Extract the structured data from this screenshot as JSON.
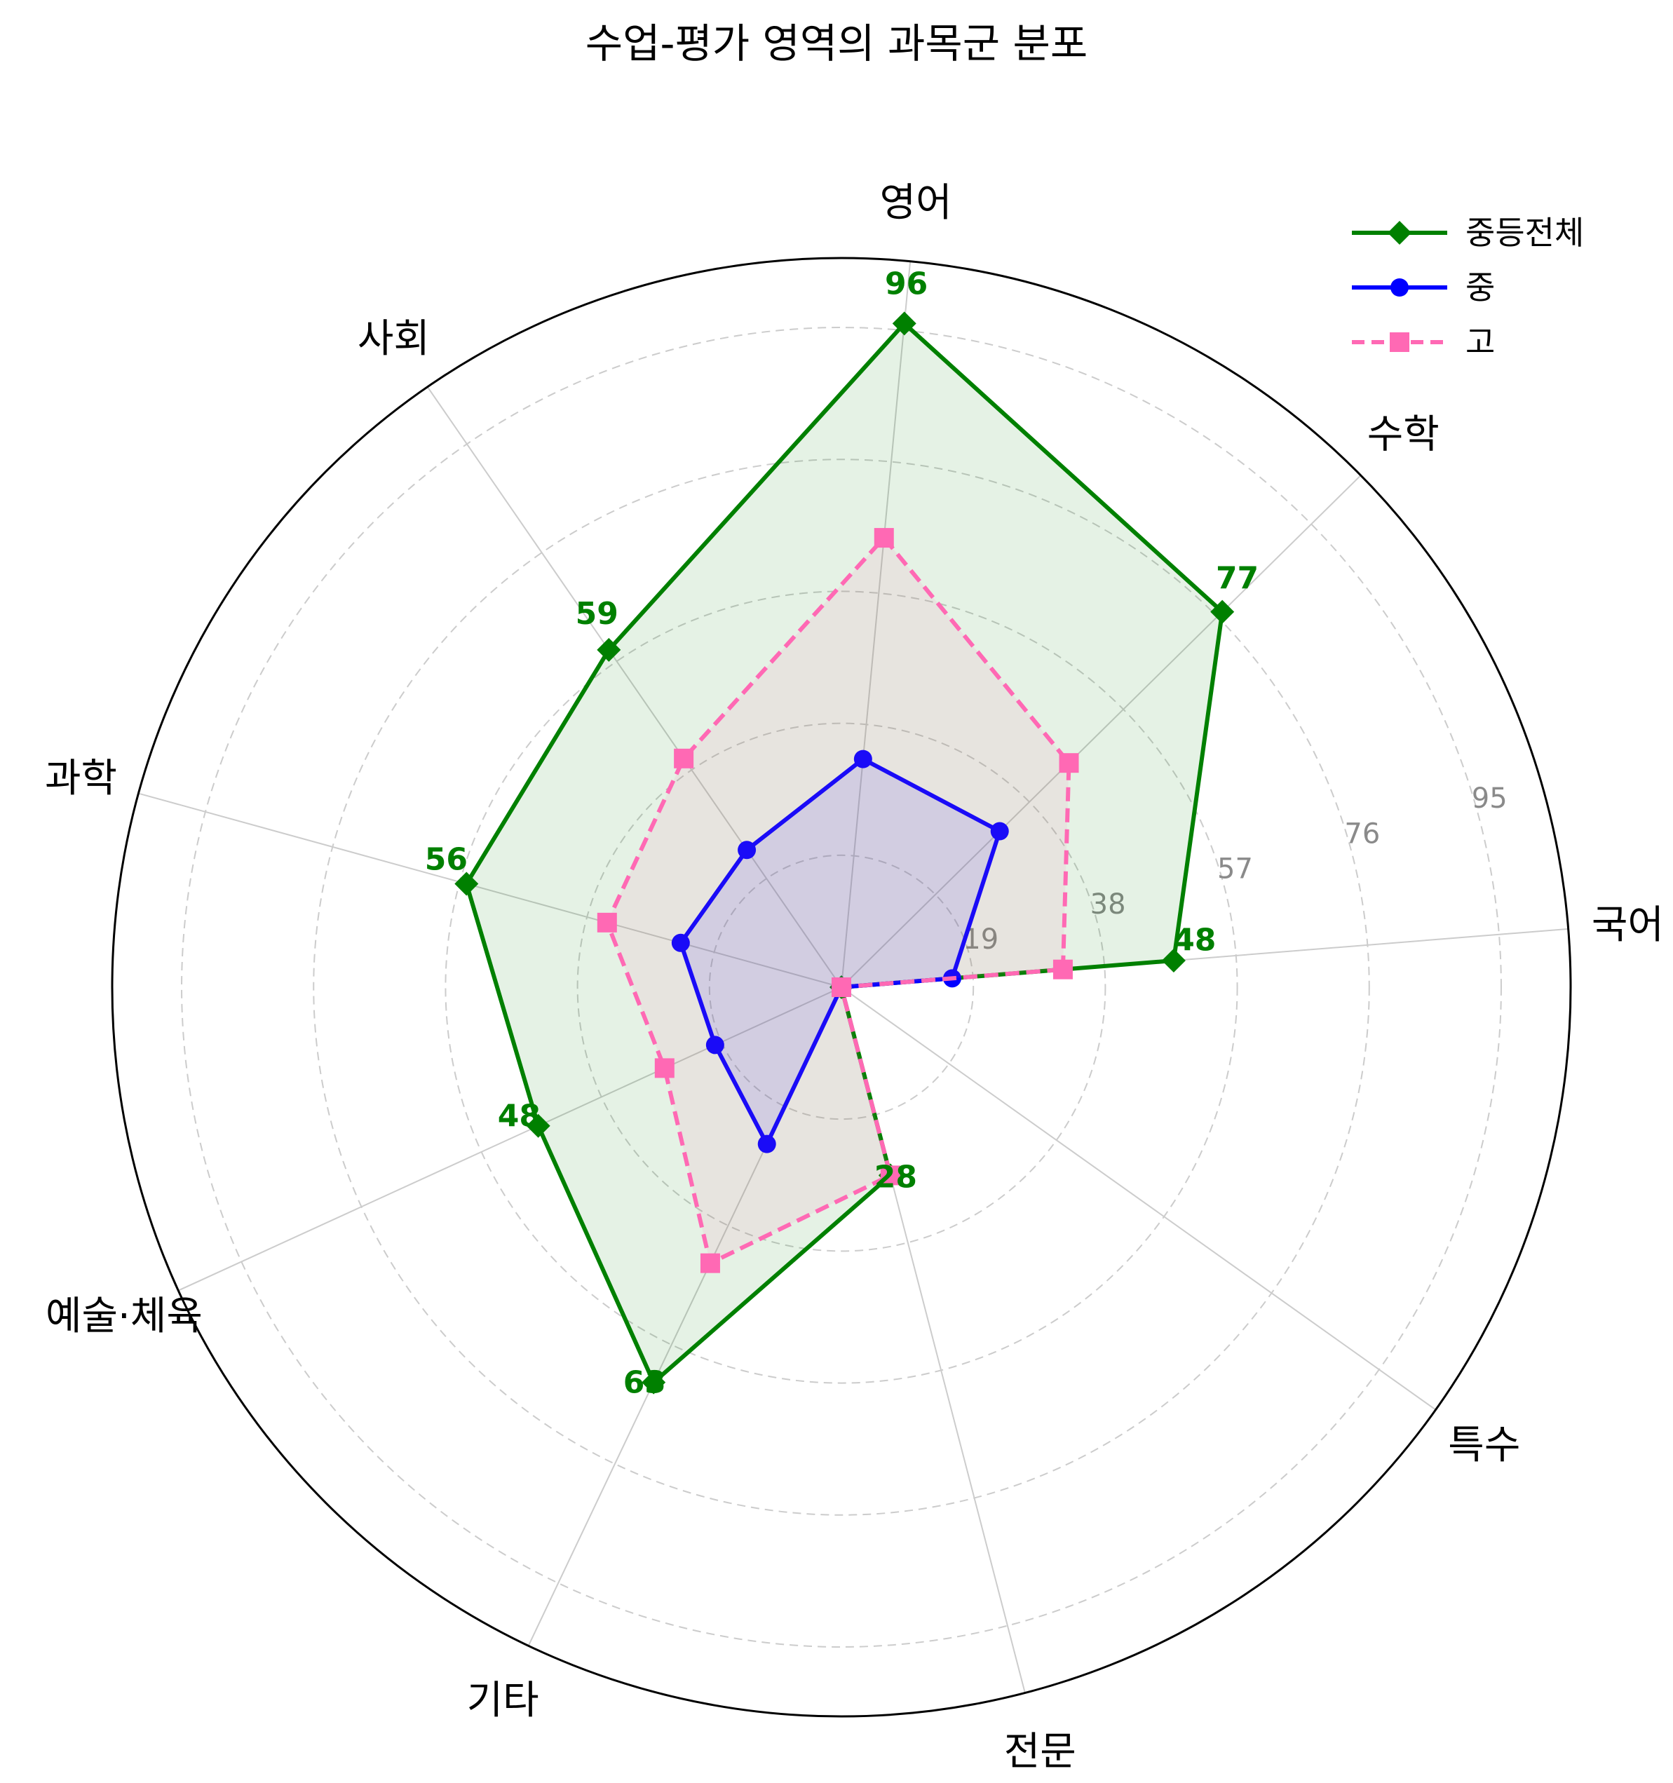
{
  "chart_data": {
    "type": "radar",
    "title": "수업-평가 영역의 과목군 분포",
    "categories": [
      "국어",
      "수학",
      "영어",
      "사회",
      "과학",
      "예술·체육",
      "기타",
      "전문",
      "특수"
    ],
    "rmax": 105,
    "radial_ticks": [
      19,
      38,
      57,
      76,
      95
    ],
    "grid": true,
    "legend_position": "top-right",
    "series": [
      {
        "name": "중등전체",
        "values": [
          48,
          77,
          96,
          59,
          56,
          48,
          63,
          28,
          0
        ],
        "color": "#008000",
        "marker": "diamond",
        "linestyle": "solid",
        "fill": true,
        "labels_shown": true
      },
      {
        "name": "중",
        "values": [
          16,
          32,
          33,
          24,
          24,
          20,
          25,
          0,
          0
        ],
        "color": "#0000ff",
        "marker": "circle",
        "linestyle": "solid",
        "fill": true,
        "labels_shown": false
      },
      {
        "name": "고",
        "values": [
          32,
          46,
          65,
          40,
          35,
          28,
          44,
          28,
          0
        ],
        "color": "#ff69b4",
        "marker": "square",
        "linestyle": "dashed",
        "fill": true,
        "labels_shown": false
      }
    ]
  }
}
